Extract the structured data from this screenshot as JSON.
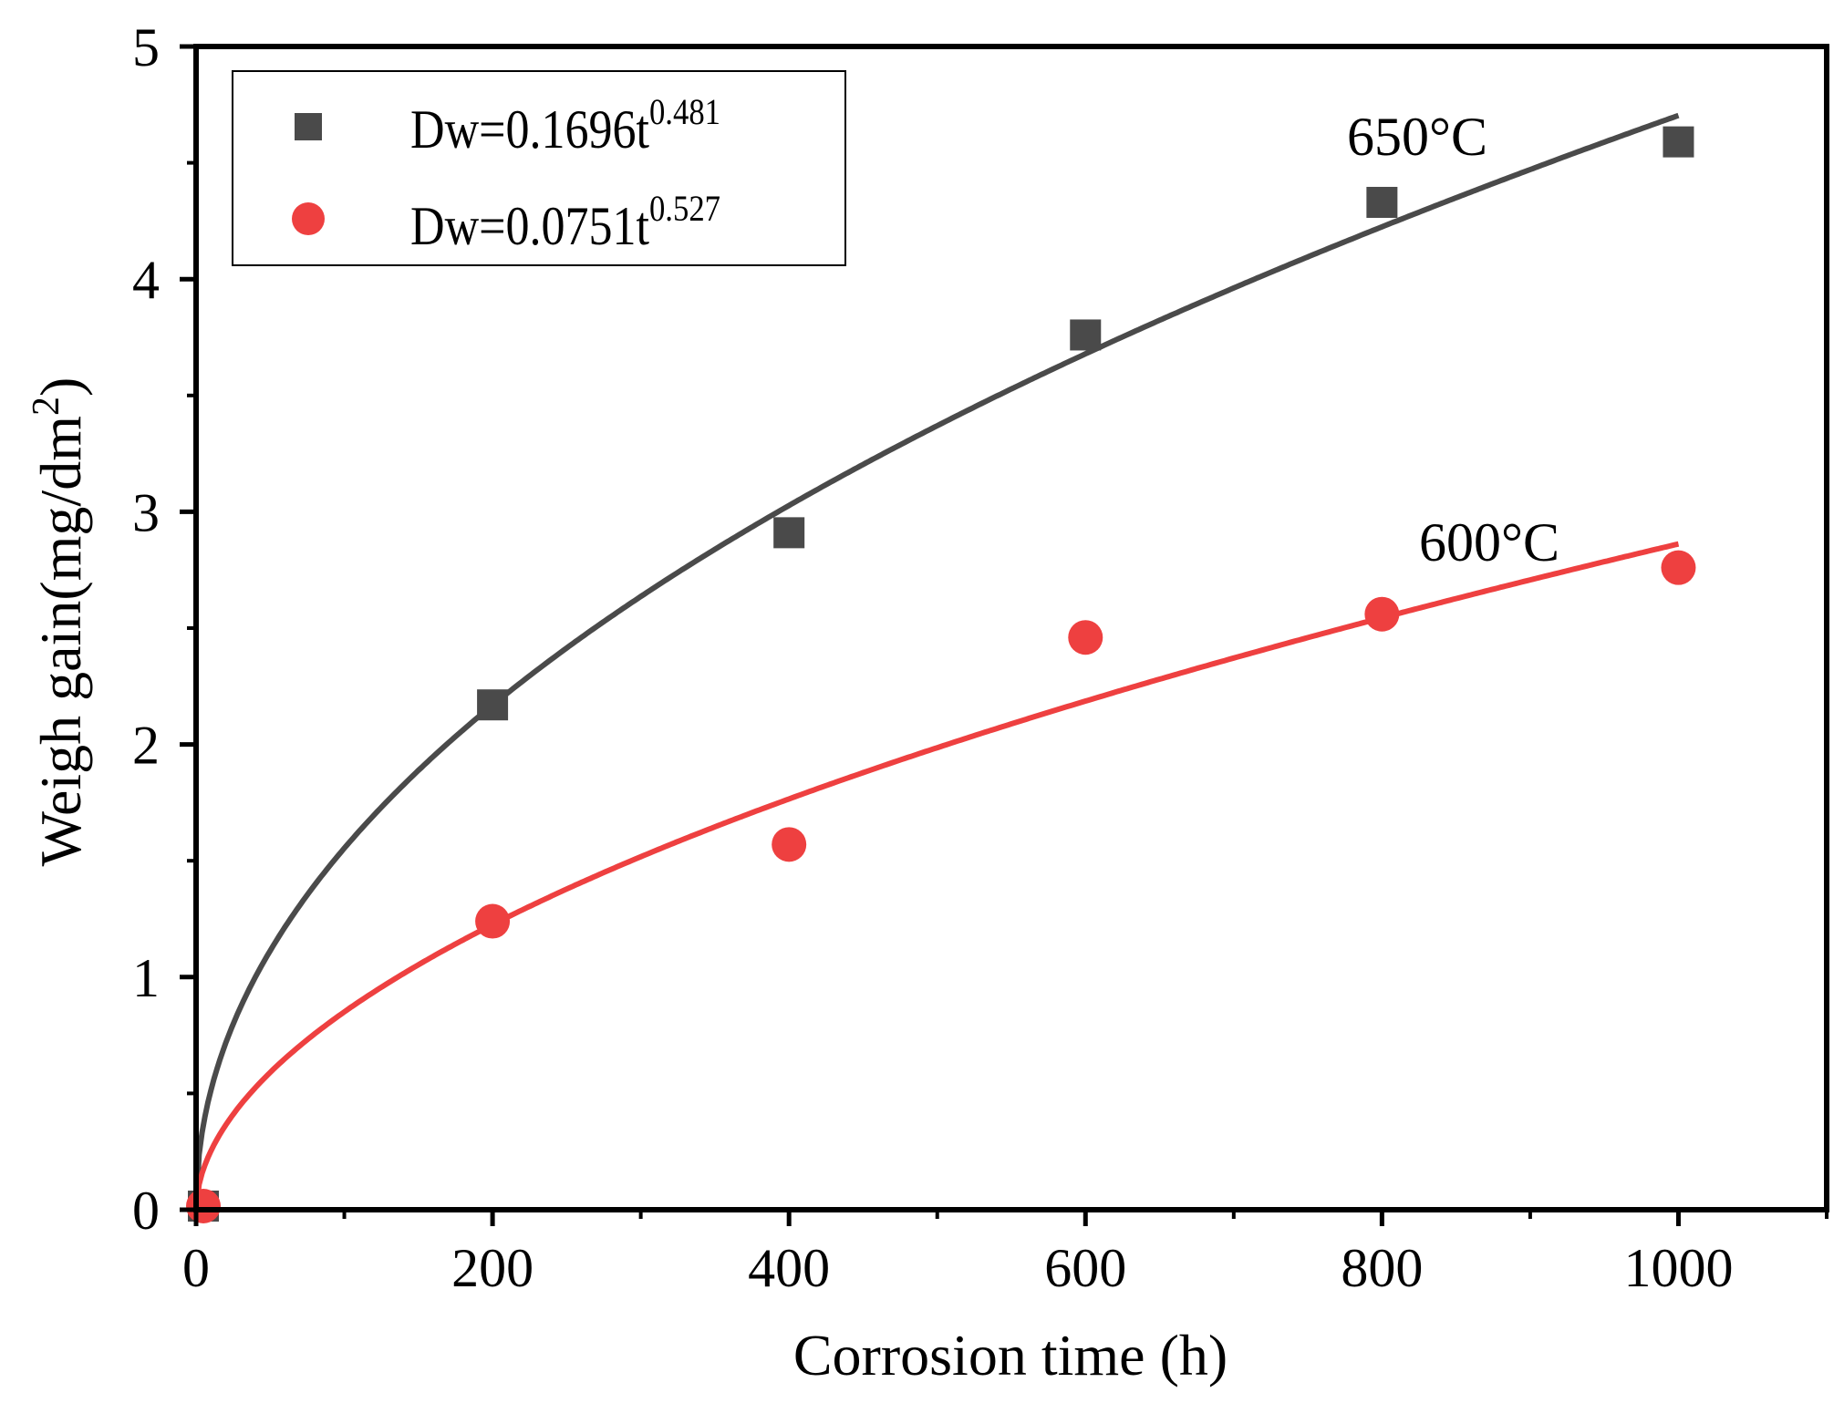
{
  "chart_data": {
    "type": "scatter",
    "xlabel": "Corrosion time (h)",
    "ylabel": "Weigh gain(mg/dm",
    "ylabel_sup": "2",
    "ylabel_close": ")",
    "xlim": [
      0,
      1100
    ],
    "ylim": [
      0,
      5
    ],
    "x_ticks": [
      0,
      200,
      400,
      600,
      800,
      1000
    ],
    "x_tick_labels": [
      "0",
      "200",
      "400",
      "600",
      "800",
      "1000"
    ],
    "x_minor_ticks": [
      100,
      300,
      500,
      700,
      900,
      1100
    ],
    "y_ticks": [
      0,
      1,
      2,
      3,
      4,
      5
    ],
    "y_tick_labels": [
      "0",
      "1",
      "2",
      "3",
      "4",
      "5"
    ],
    "y_minor_ticks": [
      0.5,
      1.5,
      2.5,
      3.5,
      4.5
    ],
    "grid": false,
    "legend_position": "top-left",
    "series": [
      {
        "name": "650°C",
        "label": "650°C",
        "legend_base": "Dw=0.1696t",
        "legend_exp": "0.481",
        "marker": "square",
        "color": "#4a4a4a",
        "x": [
          0,
          200,
          400,
          600,
          800,
          1000
        ],
        "y": [
          0,
          2.17,
          2.91,
          3.76,
          4.33,
          4.59
        ],
        "fit": {
          "a": 0.1696,
          "b": 0.481
        }
      },
      {
        "name": "600°C",
        "label": "600°C",
        "legend_base": "Dw=0.0751t",
        "legend_exp": "0.527",
        "marker": "circle",
        "color": "#ee4040",
        "x": [
          0,
          200,
          400,
          600,
          800,
          1000
        ],
        "y": [
          0,
          1.24,
          1.57,
          2.46,
          2.56,
          2.76
        ],
        "fit": {
          "a": 0.0751,
          "b": 0.527
        }
      }
    ]
  }
}
